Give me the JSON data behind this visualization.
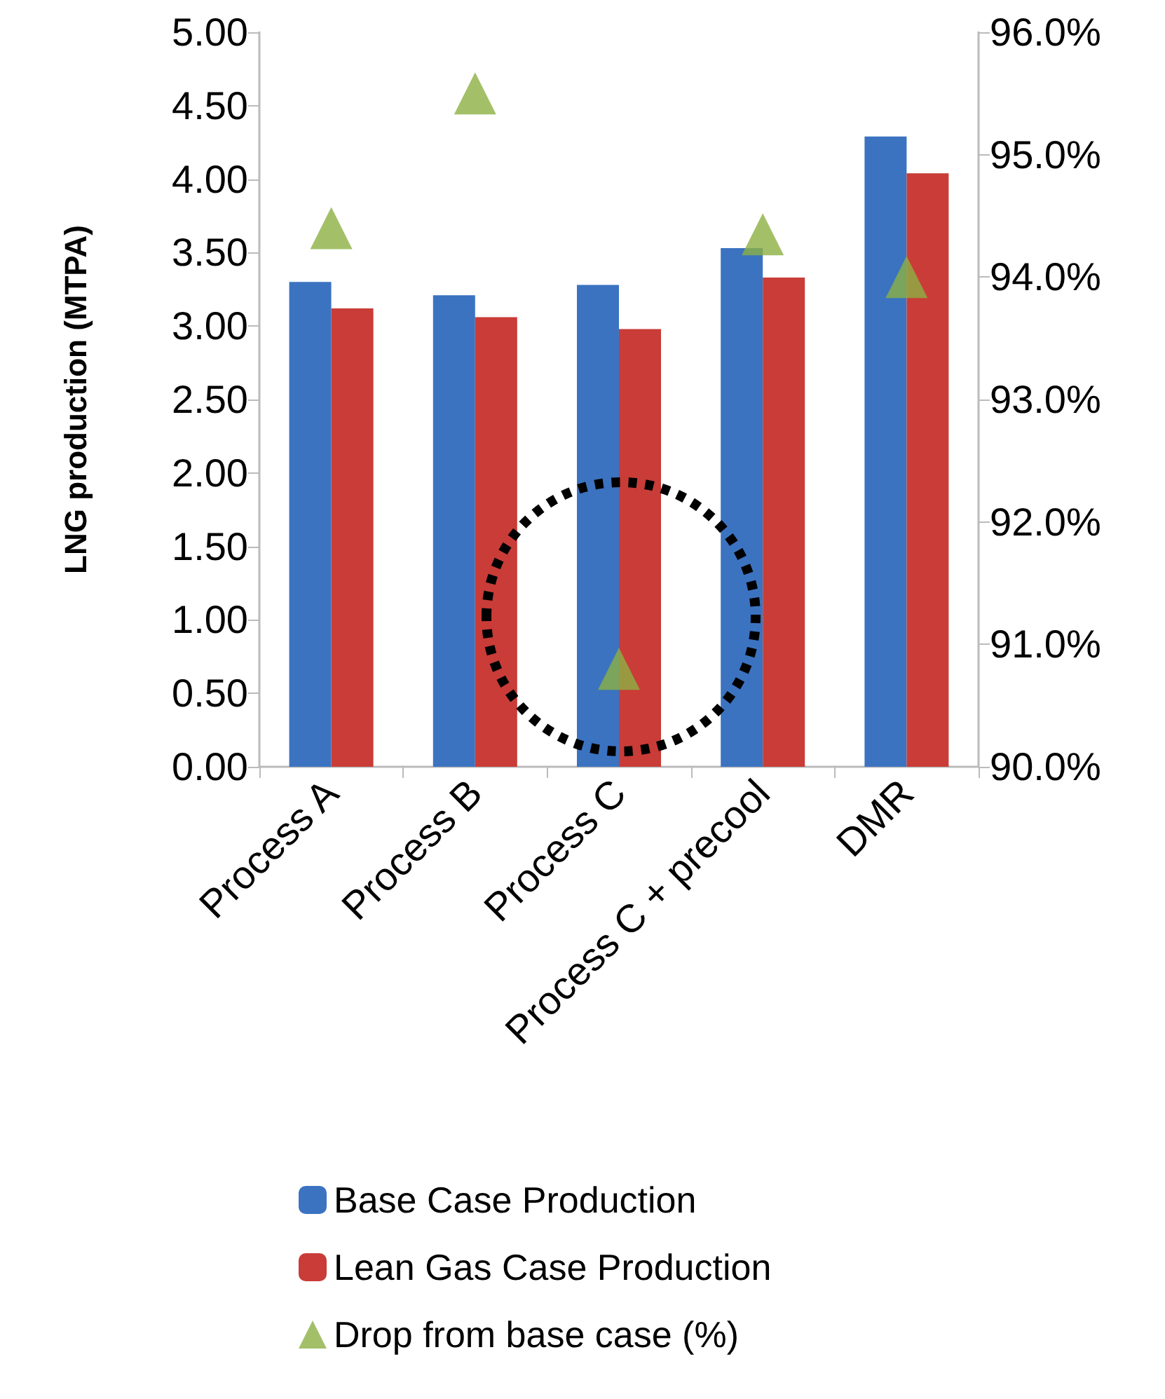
{
  "chart_data": {
    "type": "bar",
    "ylabel": "LNG production (MTPA)",
    "categories": [
      "Process A",
      "Process B",
      "Process C",
      "Process C + precool",
      "DMR"
    ],
    "series": [
      {
        "name": "Base Case Production",
        "color": "#3b73c1",
        "values": [
          3.3,
          3.21,
          3.28,
          3.53,
          4.29
        ]
      },
      {
        "name": "Lean Gas Case Production",
        "color": "#c93c37",
        "values": [
          3.12,
          3.06,
          2.98,
          3.33,
          4.04
        ]
      },
      {
        "name": "Drop from base case (%)",
        "type": "scatter",
        "axis": "y2",
        "marker": "triangle",
        "color": "#8cb043",
        "values": [
          94.4,
          95.5,
          90.8,
          94.35,
          94.0
        ]
      }
    ],
    "ylim": [
      0,
      5
    ],
    "yticks": [
      {
        "value": 0,
        "label": "0.00"
      },
      {
        "value": 0.5,
        "label": "0.50"
      },
      {
        "value": 1,
        "label": "1.00"
      },
      {
        "value": 1.5,
        "label": "1.50"
      },
      {
        "value": 2,
        "label": "2.00"
      },
      {
        "value": 2.5,
        "label": "2.50"
      },
      {
        "value": 3,
        "label": "3.00"
      },
      {
        "value": 3.5,
        "label": "3.50"
      },
      {
        "value": 4,
        "label": "4.00"
      },
      {
        "value": 4.5,
        "label": "4.50"
      },
      {
        "value": 5,
        "label": "5.00"
      }
    ],
    "y2lim": [
      90,
      96
    ],
    "y2ticks": [
      {
        "value": 90,
        "label": "90.0%"
      },
      {
        "value": 91,
        "label": "91.0%"
      },
      {
        "value": 92,
        "label": "92.0%"
      },
      {
        "value": 93,
        "label": "93.0%"
      },
      {
        "value": 94,
        "label": "94.0%"
      },
      {
        "value": 95,
        "label": "95.0%"
      },
      {
        "value": 96,
        "label": "96.0%"
      }
    ],
    "legend": "bottom"
  }
}
